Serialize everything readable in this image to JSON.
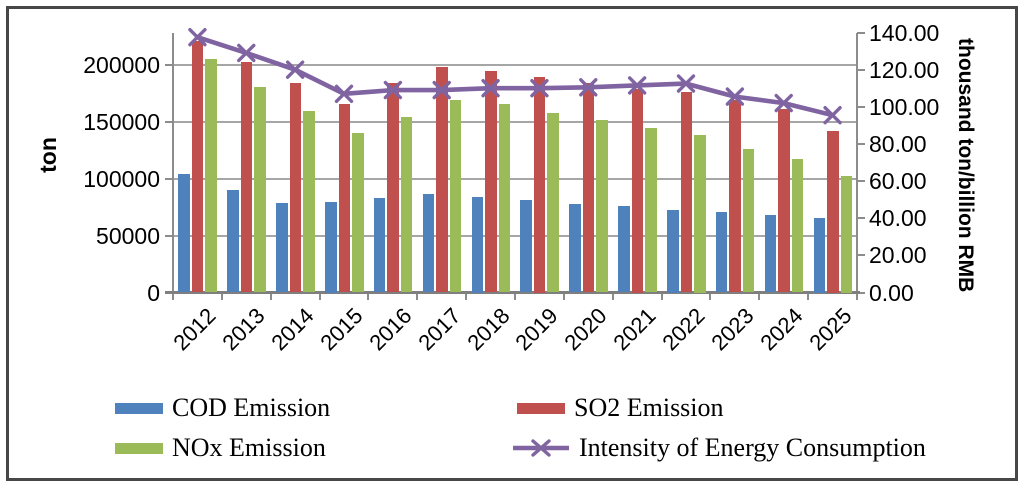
{
  "chart_data": {
    "type": "bar+line combo",
    "title": "",
    "categories": [
      "2012",
      "2013",
      "2014",
      "2015",
      "2016",
      "2017",
      "2018",
      "2019",
      "2020",
      "2021",
      "2022",
      "2023",
      "2024",
      "2025"
    ],
    "series": [
      {
        "name": "COD Emission",
        "chart": "bar",
        "axis": "left",
        "color": "#4F81BD",
        "values": [
          104000,
          90000,
          78500,
          80000,
          83000,
          87000,
          84000,
          81000,
          77500,
          76000,
          73000,
          70500,
          68000,
          66000
        ]
      },
      {
        "name": "SO2 Emission",
        "chart": "bar",
        "axis": "left",
        "color": "#C0504D",
        "values": [
          221000,
          203000,
          184000,
          166000,
          184000,
          198000,
          195000,
          190000,
          184000,
          179000,
          176000,
          169000,
          161000,
          142000
        ]
      },
      {
        "name": "NOx Emission",
        "chart": "bar",
        "axis": "left",
        "color": "#9BBB59",
        "values": [
          205500,
          181000,
          160000,
          140500,
          154500,
          169000,
          165500,
          158000,
          152000,
          145000,
          139000,
          126500,
          117500,
          102500
        ]
      },
      {
        "name": "Intensity of Energy Consumption",
        "chart": "line",
        "axis": "right",
        "color": "#8064A2",
        "marker": "x",
        "values": [
          137.5,
          129,
          120,
          107,
          109,
          109,
          110,
          110,
          110.5,
          111.5,
          112.5,
          105.5,
          102,
          95.5
        ]
      }
    ],
    "left_axis": {
      "title": "ton",
      "min": 0,
      "tick_step": 50000,
      "tick_labels": [
        "0",
        "50000",
        "100000",
        "150000",
        "200000"
      ]
    },
    "right_axis": {
      "title": "thousand ton/billion RMB",
      "min": 0,
      "max": 140,
      "tick_step": 20,
      "tick_labels": [
        "0.00",
        "20.00",
        "40.00",
        "60.00",
        "80.00",
        "100.00",
        "120.00",
        "140.00"
      ]
    },
    "legend": {
      "position": "bottom",
      "columns": 2,
      "order": [
        "COD Emission",
        "SO2 Emission",
        "NOx Emission",
        "Intensity of Energy Consumption"
      ]
    },
    "grid": "horizontal"
  }
}
